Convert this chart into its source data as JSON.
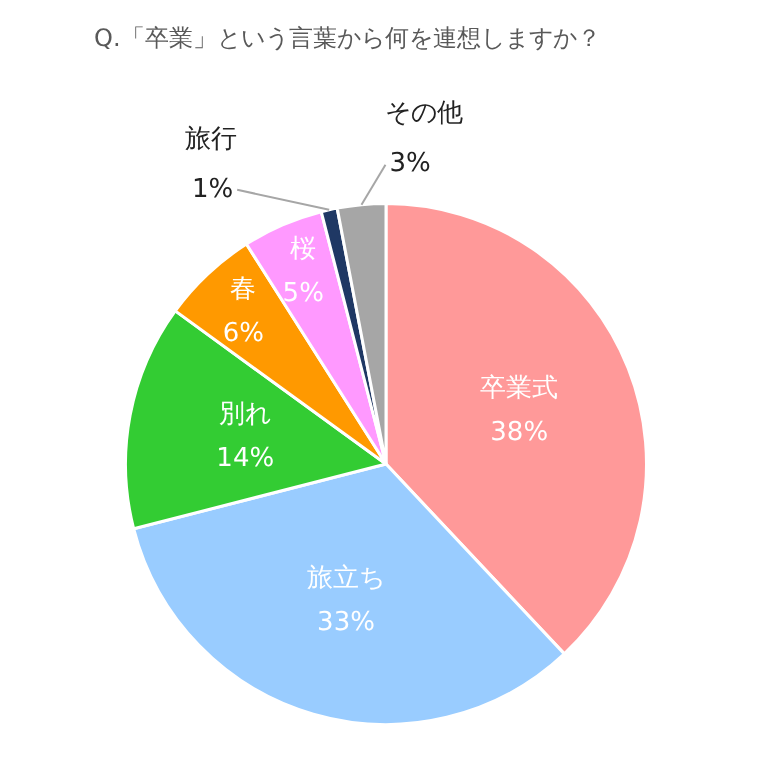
{
  "chart_data": {
    "type": "pie",
    "title": "Q.「卒業」という言葉から何を連想しますか？",
    "categories": [
      "卒業式",
      "旅立ち",
      "別れ",
      "春",
      "桜",
      "旅行",
      "その他"
    ],
    "values": [
      38,
      33,
      14,
      6,
      5,
      1,
      3
    ],
    "value_labels": [
      "38%",
      "33%",
      "14%",
      "6%",
      "5%",
      "1%",
      "3%"
    ],
    "colors": [
      "#ff9999",
      "#99ccff",
      "#33cc33",
      "#ff9900",
      "#ff99ff",
      "#1f3864",
      "#a6a6a6"
    ],
    "legend": false
  }
}
